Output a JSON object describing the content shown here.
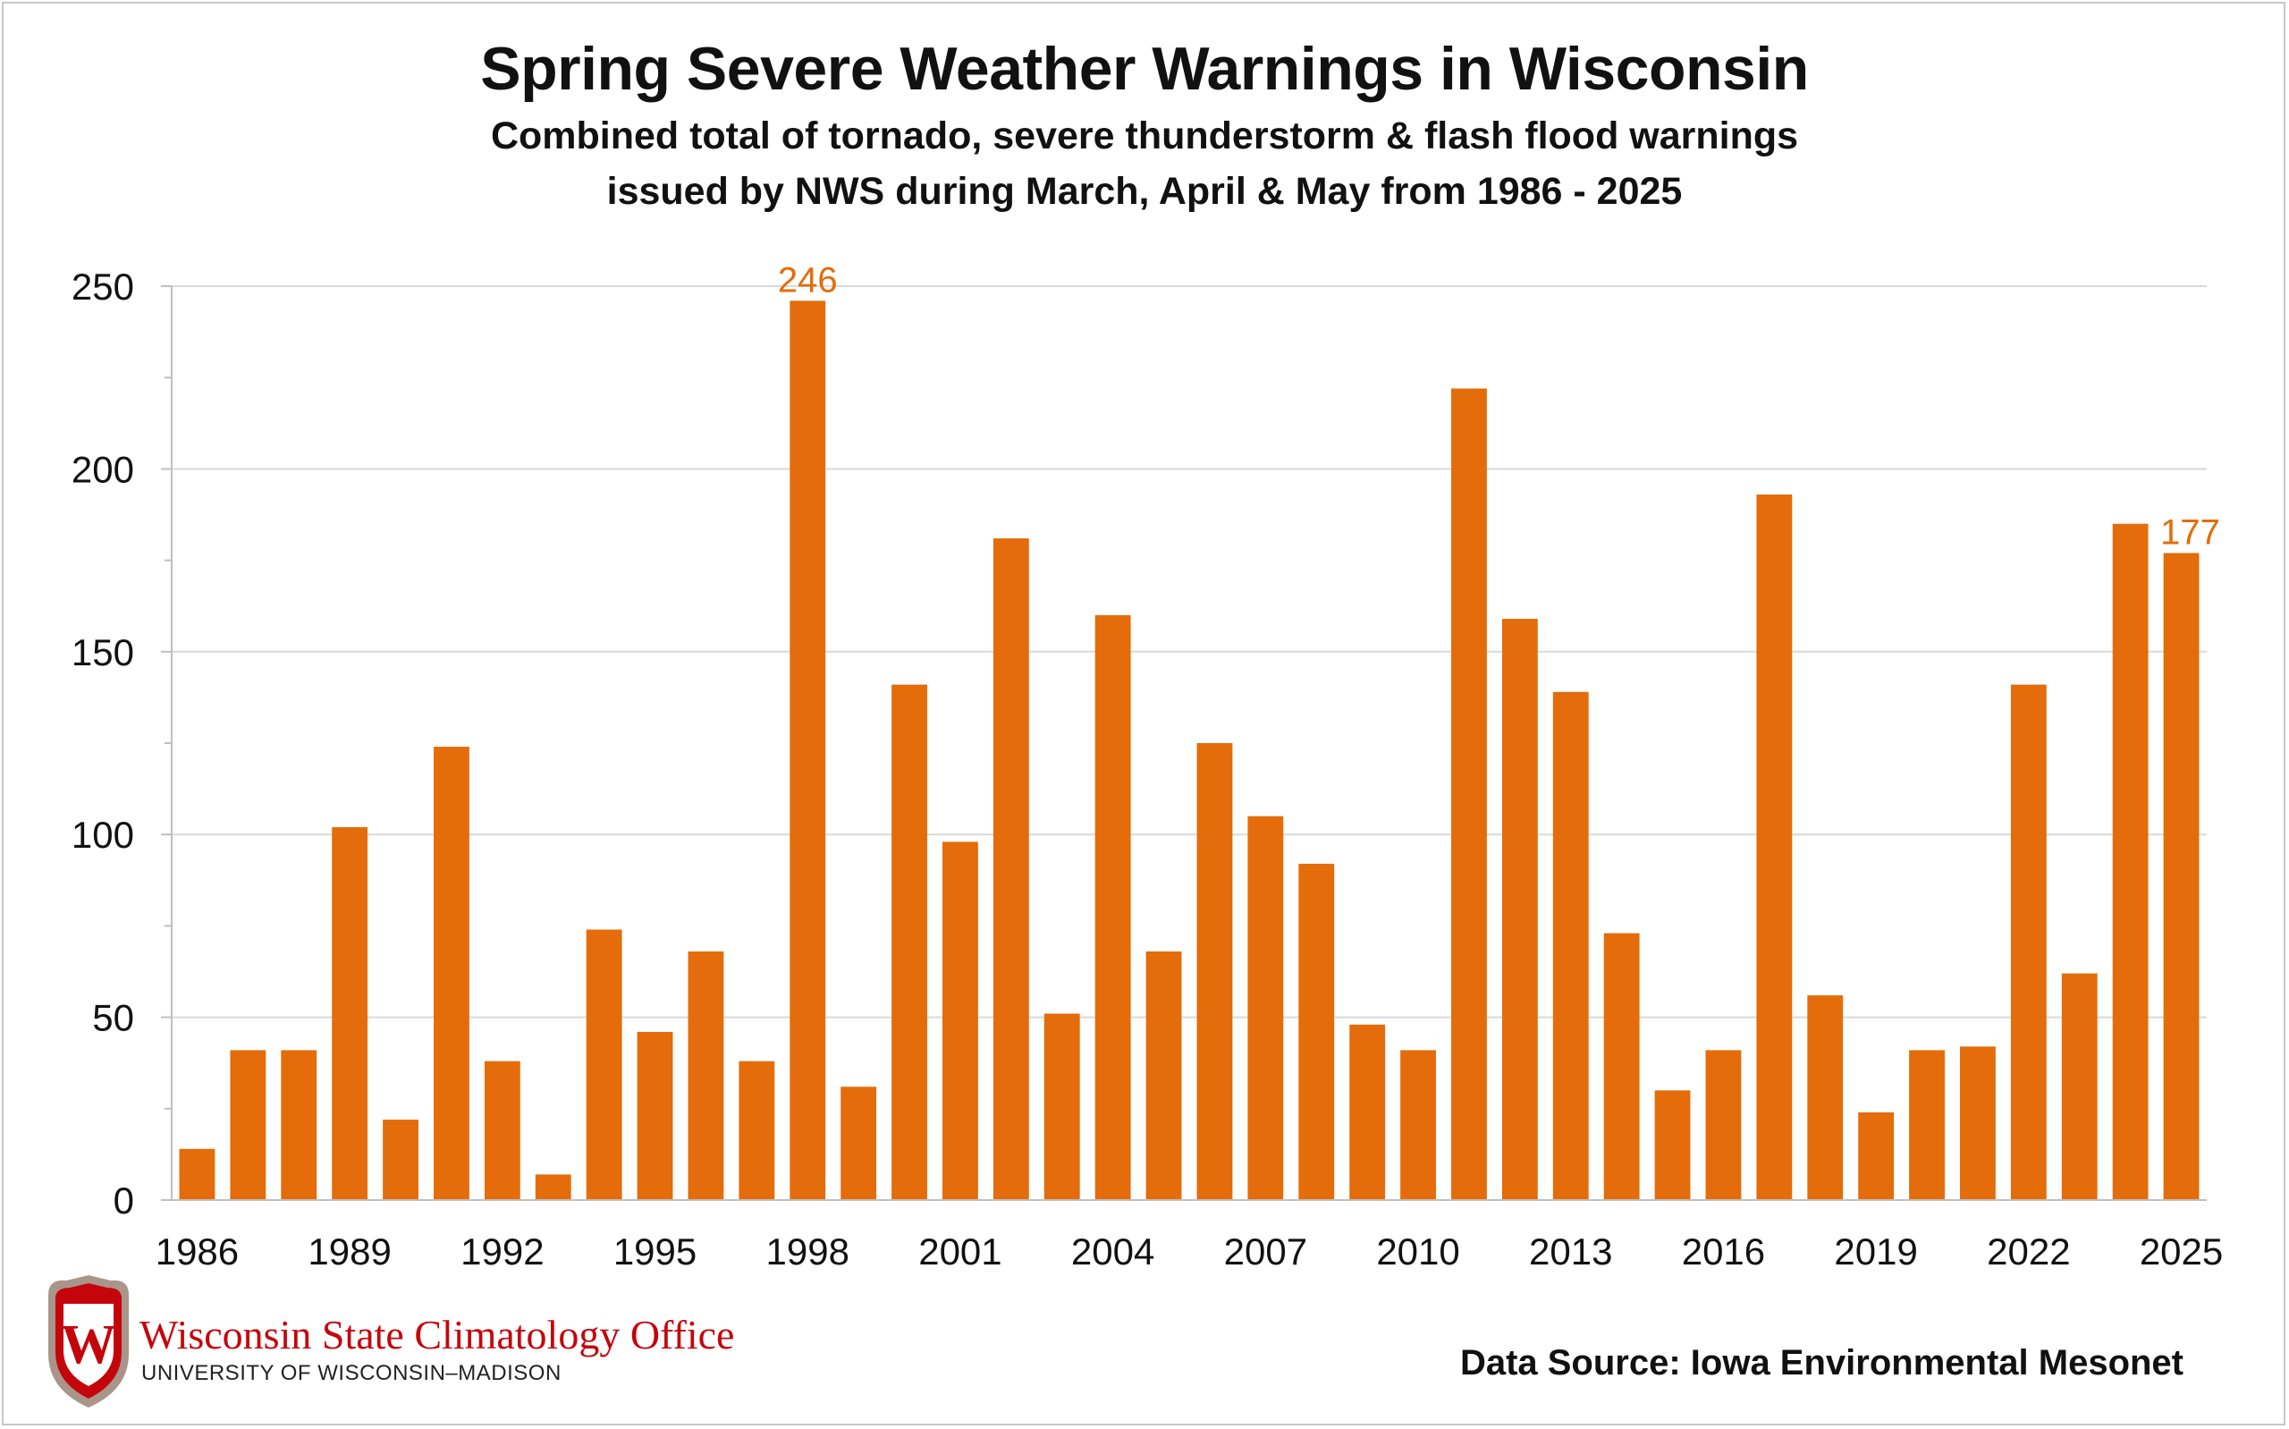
{
  "title": "Spring Severe Weather Warnings in Wisconsin",
  "subtitle_line1": "Combined total of tornado, severe thunderstorm & flash flood warnings",
  "subtitle_line2": "issued by NWS during March, April & May from 1986 - 2025",
  "org": {
    "name": "Wisconsin State Climatology Office",
    "subname": "UNIVERSITY OF WISCONSIN–MADISON",
    "logo_letter": "W"
  },
  "source": "Data Source: Iowa Environmental Mesonet",
  "colors": {
    "bar": "#e46c0a",
    "label": "#e46c0a",
    "grid": "#d9d9d9",
    "brand_red": "#c5050c"
  },
  "chart_data": {
    "type": "bar",
    "title": "Spring Severe Weather Warnings in Wisconsin",
    "xlabel": "",
    "ylabel": "",
    "ylim": [
      0,
      250
    ],
    "yticks": [
      0,
      50,
      100,
      150,
      200,
      250
    ],
    "grid": true,
    "categories": [
      1986,
      1987,
      1988,
      1989,
      1990,
      1991,
      1992,
      1993,
      1994,
      1995,
      1996,
      1997,
      1998,
      1999,
      2000,
      2001,
      2002,
      2003,
      2004,
      2005,
      2006,
      2007,
      2008,
      2009,
      2010,
      2011,
      2012,
      2013,
      2014,
      2015,
      2016,
      2017,
      2018,
      2019,
      2020,
      2021,
      2022,
      2023,
      2024,
      2025
    ],
    "values": [
      14,
      41,
      41,
      102,
      22,
      124,
      38,
      7,
      74,
      46,
      68,
      38,
      246,
      31,
      141,
      98,
      181,
      51,
      160,
      68,
      125,
      105,
      92,
      48,
      41,
      222,
      159,
      139,
      73,
      30,
      41,
      193,
      56,
      24,
      41,
      42,
      141,
      62,
      185,
      177
    ],
    "xtick_labels": [
      "1986",
      "1989",
      "1992",
      "1995",
      "1998",
      "2001",
      "2004",
      "2007",
      "2010",
      "2013",
      "2016",
      "2019",
      "2022",
      "2025"
    ],
    "data_labels": [
      {
        "category": 1998,
        "text": "246"
      },
      {
        "category": 2025,
        "text": "177"
      }
    ]
  }
}
